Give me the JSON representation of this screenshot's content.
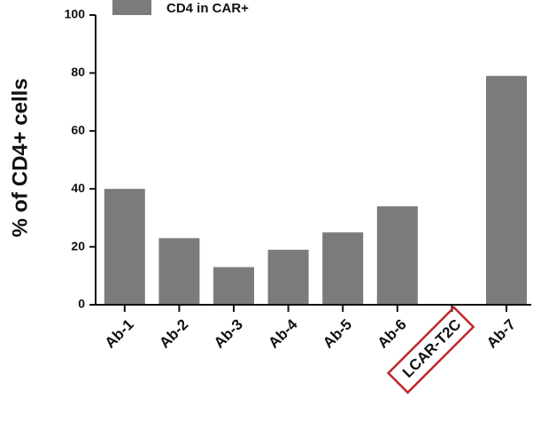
{
  "chart_data": {
    "type": "bar",
    "title": "",
    "xlabel": "",
    "ylabel": "% of CD4+ cells",
    "ylim": [
      0,
      100
    ],
    "yticks": [
      0,
      20,
      40,
      60,
      80,
      100
    ],
    "categories": [
      "Ab-1",
      "Ab-2",
      "Ab-3",
      "Ab-4",
      "Ab-5",
      "Ab-6",
      "LCAR-T2C",
      "Ab-7"
    ],
    "series": [
      {
        "name": "CD4 in CAR+",
        "values": [
          40,
          23,
          13,
          19,
          25,
          34,
          0,
          79
        ]
      }
    ],
    "highlighted_category": "LCAR-T2C",
    "legend_position": "top",
    "grid": false,
    "colors": {
      "bar": "#7b7b7b",
      "axis": "#111111",
      "highlight_box": "#c0262b"
    }
  }
}
